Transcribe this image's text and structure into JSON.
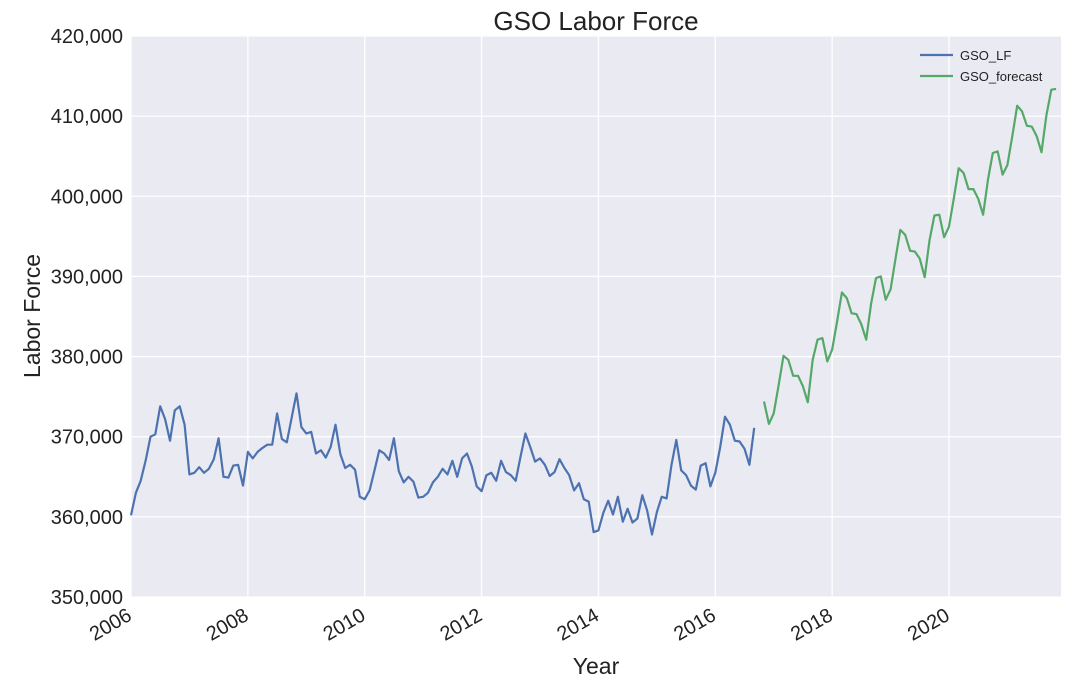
{
  "chart_data": {
    "type": "line",
    "title": "GSO Labor Force",
    "xlabel": "Year",
    "ylabel": "Labor Force",
    "xlim": [
      "2006-01",
      "2021-12"
    ],
    "ylim": [
      350000,
      420000
    ],
    "x_ticks": [
      "2006",
      "2008",
      "2010",
      "2012",
      "2014",
      "2016",
      "2018",
      "2020"
    ],
    "y_ticks": [
      "350,000",
      "360,000",
      "370,000",
      "380,000",
      "390,000",
      "400,000",
      "410,000",
      "420,000"
    ],
    "grid": true,
    "legend_position": "top-right",
    "series": [
      {
        "name": "GSO_LF",
        "color": "#4C72B0",
        "start": "2006-01",
        "step": "month",
        "values": [
          360200,
          363000,
          364500,
          367000,
          370000,
          370300,
          373800,
          372200,
          369500,
          373300,
          373800,
          371500,
          365300,
          365500,
          366200,
          365500,
          366000,
          367200,
          369800,
          365000,
          364900,
          366400,
          366500,
          363900,
          368100,
          367300,
          368100,
          368600,
          369000,
          369000,
          372900,
          369700,
          369300,
          372400,
          375400,
          371200,
          370400,
          370600,
          367900,
          368300,
          367400,
          368700,
          371500,
          367800,
          366100,
          366500,
          365900,
          362500,
          362200,
          363300,
          365800,
          368300,
          367900,
          367100,
          369800,
          365700,
          364300,
          365000,
          364400,
          362400,
          362500,
          363000,
          364300,
          365000,
          366000,
          365300,
          367000,
          365000,
          367300,
          367900,
          366300,
          363800,
          363200,
          365200,
          365500,
          364500,
          367000,
          365600,
          365200,
          364500,
          367500,
          370400,
          368700,
          366900,
          367300,
          366500,
          365100,
          365600,
          367200,
          366100,
          365200,
          363300,
          364200,
          362200,
          361900,
          358100,
          358300,
          360500,
          362000,
          360300,
          362500,
          359400,
          361000,
          359300,
          359800,
          362700,
          360800,
          357800,
          360600,
          362500,
          362300,
          366500,
          369600,
          365800,
          365200,
          363900,
          363400,
          366400,
          366700,
          363800,
          365500,
          368700,
          372500,
          371500,
          369500,
          369400,
          368500,
          366500,
          371100
        ]
      },
      {
        "name": "GSO_forecast",
        "color": "#55A868",
        "start": "2016-11",
        "step": "month",
        "values": [
          374400,
          371600,
          372900,
          376400,
          380100,
          379600,
          377600,
          377600,
          376300,
          374300,
          379600,
          382100,
          382300,
          379400,
          380900,
          384300,
          388000,
          387300,
          385400,
          385300,
          384000,
          382100,
          386600,
          389800,
          390000,
          387100,
          388400,
          392200,
          395800,
          395200,
          393200,
          393100,
          392200,
          389900,
          394500,
          397600,
          397700,
          394900,
          396200,
          399800,
          403500,
          402900,
          400900,
          400900,
          399700,
          397700,
          402100,
          405400,
          405600,
          402700,
          403900,
          407500,
          411300,
          410600,
          408800,
          408700,
          407500,
          405500,
          410100,
          413300,
          413400
        ]
      }
    ]
  }
}
